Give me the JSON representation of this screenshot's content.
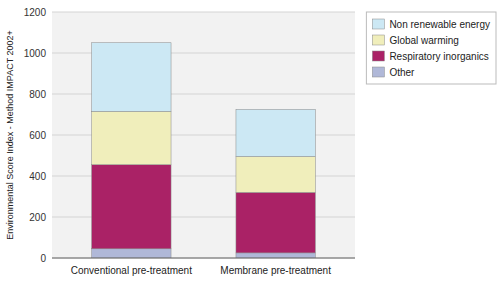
{
  "chart_data": {
    "type": "bar",
    "stacked": true,
    "y_label": "Environmental Score Index - Method IMPACT 2002+",
    "categories": [
      "Conventional pre-treatment",
      "Membrane pre-treatment"
    ],
    "series": [
      {
        "name": "Other",
        "color": "#b0b8d8",
        "values": [
          45,
          25
        ]
      },
      {
        "name": "Respiratory inorganics",
        "color": "#aa2266",
        "values": [
          410,
          295
        ]
      },
      {
        "name": "Global warming",
        "color": "#f0eebb",
        "values": [
          260,
          175
        ]
      },
      {
        "name": "Non renewable energy",
        "color": "#cce8f4",
        "values": [
          335,
          230
        ]
      }
    ],
    "ylim": [
      0,
      1200
    ],
    "yticks": [
      0,
      200,
      400,
      600,
      800,
      1000,
      1200
    ],
    "grid": true,
    "legend": "upper right"
  }
}
